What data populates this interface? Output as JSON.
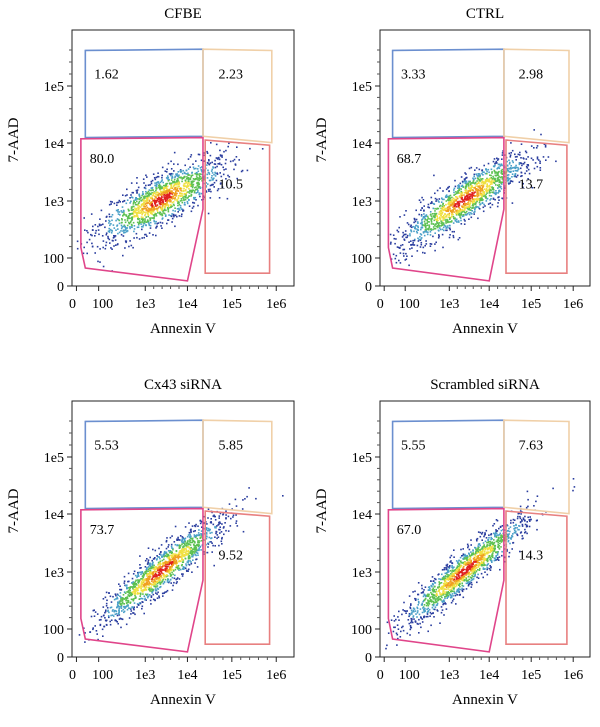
{
  "chart_data": [
    {
      "type": "scatter",
      "subtype": "flow-cytometry-density",
      "title": "CFBE",
      "xlabel": "Annexin V",
      "ylabel": "7-AAD",
      "x_ticks": [
        "0",
        "100",
        "1e3",
        "1e4",
        "1e5",
        "1e6"
      ],
      "y_ticks": [
        "0",
        "100",
        "1e3",
        "1e4",
        "1e5"
      ],
      "scale": "biexponential",
      "gates": [
        {
          "quadrant": "upper-left",
          "value": "1.62",
          "color": "#6b8fcf"
        },
        {
          "quadrant": "upper-right",
          "value": "2.23",
          "color": "#f0d0a8"
        },
        {
          "quadrant": "lower-left",
          "value": "80.0",
          "color": "#e0458a"
        },
        {
          "quadrant": "lower-right",
          "value": "10.5",
          "color": "#e88080"
        }
      ]
    },
    {
      "type": "scatter",
      "subtype": "flow-cytometry-density",
      "title": "CTRL",
      "xlabel": "Annexin V",
      "ylabel": "7-AAD",
      "x_ticks": [
        "0",
        "100",
        "1e3",
        "1e4",
        "1e5",
        "1e6"
      ],
      "y_ticks": [
        "0",
        "100",
        "1e3",
        "1e4",
        "1e5"
      ],
      "scale": "biexponential",
      "gates": [
        {
          "quadrant": "upper-left",
          "value": "3.33",
          "color": "#6b8fcf"
        },
        {
          "quadrant": "upper-right",
          "value": "2.98",
          "color": "#f0d0a8"
        },
        {
          "quadrant": "lower-left",
          "value": "68.7",
          "color": "#e0458a"
        },
        {
          "quadrant": "lower-right",
          "value": "13.7",
          "color": "#e88080"
        }
      ]
    },
    {
      "type": "scatter",
      "subtype": "flow-cytometry-density",
      "title": "Cx43 siRNA",
      "xlabel": "Annexin V",
      "ylabel": "7-AAD",
      "x_ticks": [
        "0",
        "100",
        "1e3",
        "1e4",
        "1e5",
        "1e6"
      ],
      "y_ticks": [
        "0",
        "100",
        "1e3",
        "1e4",
        "1e5"
      ],
      "scale": "biexponential",
      "gates": [
        {
          "quadrant": "upper-left",
          "value": "5.53",
          "color": "#6b8fcf"
        },
        {
          "quadrant": "upper-right",
          "value": "5.85",
          "color": "#f0d0a8"
        },
        {
          "quadrant": "lower-left",
          "value": "73.7",
          "color": "#e0458a"
        },
        {
          "quadrant": "lower-right",
          "value": "9.52",
          "color": "#e88080"
        }
      ]
    },
    {
      "type": "scatter",
      "subtype": "flow-cytometry-density",
      "title": "Scrambled siRNA",
      "xlabel": "Annexin V",
      "ylabel": "7-AAD",
      "x_ticks": [
        "0",
        "100",
        "1e3",
        "1e4",
        "1e5",
        "1e6"
      ],
      "y_ticks": [
        "0",
        "100",
        "1e3",
        "1e4",
        "1e5"
      ],
      "scale": "biexponential",
      "gates": [
        {
          "quadrant": "upper-left",
          "value": "5.55",
          "color": "#6b8fcf"
        },
        {
          "quadrant": "upper-right",
          "value": "7.63",
          "color": "#f0d0a8"
        },
        {
          "quadrant": "lower-left",
          "value": "67.0",
          "color": "#e0458a"
        },
        {
          "quadrant": "lower-right",
          "value": "14.3",
          "color": "#e88080"
        }
      ]
    }
  ],
  "density_colors": [
    "#2a3d9e",
    "#4aa0c8",
    "#5cc050",
    "#f0e040",
    "#f0a020",
    "#e02020"
  ]
}
